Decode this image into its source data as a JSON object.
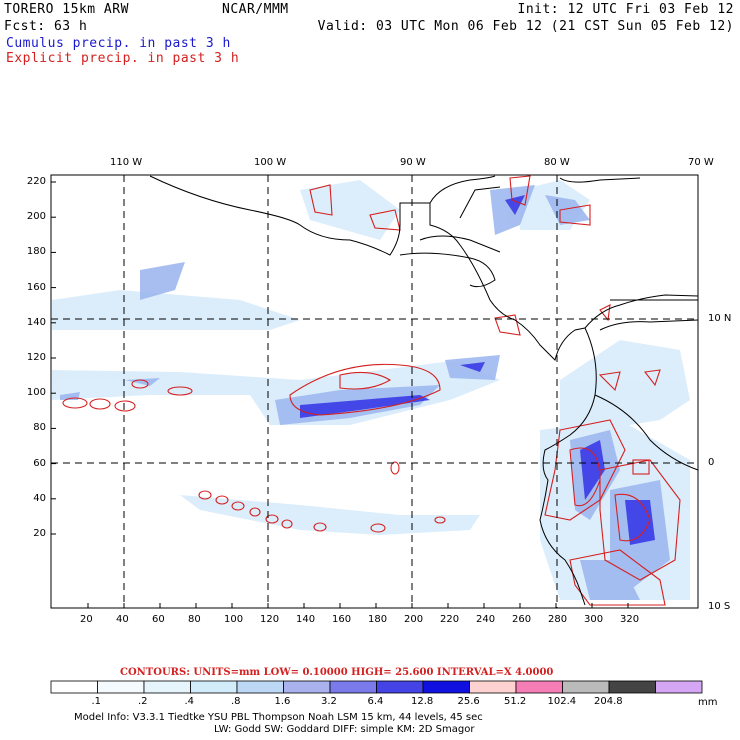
{
  "header": {
    "model": "TORERO  15km ARW",
    "org": "NCAR/MMM",
    "init": "Init: 12 UTC Fri 03 Feb 12",
    "fcst": "Fcst:    63 h",
    "valid": "Valid: 03 UTC Mon 06 Feb 12 (21 CST Sun 05 Feb 12)",
    "cumulus_label": "Cumulus precip. in past 3 h",
    "explicit_label": "Explicit precip. in past 3 h"
  },
  "axes": {
    "top_lon_labels": [
      "110 W",
      "100 W",
      "90 W",
      "80 W",
      "70 W"
    ],
    "right_lat_labels": [
      "10 N",
      "0",
      "10 S"
    ],
    "left_ticks": [
      "220",
      "200",
      "180",
      "160",
      "140",
      "120",
      "100",
      "80",
      "60",
      "40",
      "20"
    ],
    "bottom_ticks": [
      "20",
      "40",
      "60",
      "80",
      "100",
      "120",
      "140",
      "160",
      "180",
      "200",
      "220",
      "240",
      "260",
      "280",
      "300",
      "320"
    ]
  },
  "contours_line": "CONTOURS:  UNITS=mm  LOW= 0.10000      HIGH=  25.600      INTERVAL=X  4.0000",
  "colorbar": {
    "labels": [
      ".1",
      ".2",
      ".4",
      ".8",
      "1.6",
      "3.2",
      "6.4",
      "12.8",
      "25.6",
      "51.2",
      "102.4",
      "204.8"
    ],
    "units": "mm",
    "colors": [
      "#ffffff",
      "#f4fafe",
      "#e6f4fc",
      "#d2ecfa",
      "#bcd8f4",
      "#aab2ee",
      "#7a7aea",
      "#4444e6",
      "#1010e0",
      "#ffd2d2",
      "#f57eb6",
      "#bbbbbb",
      "#444444",
      "#d4a6f4"
    ]
  },
  "model_info": {
    "line1": "Model Info: V3.3.1    Tiedtke YSU PBL  Thompson    Noah LSM  15 km,   44 levels,   45 sec",
    "line2": "LW: Godd SW: Goddard DIFF: simple KM: 2D Smagor"
  }
}
